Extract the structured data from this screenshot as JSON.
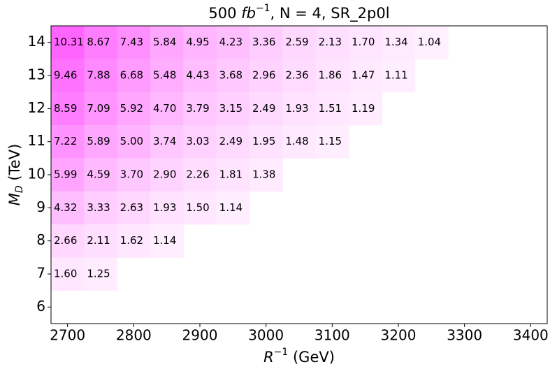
{
  "chart_data": {
    "type": "heatmap",
    "title": {
      "prefix": "500 ",
      "unit": "fb",
      "exp": "−1",
      "suffix": ", N = 4, SR_2p0l"
    },
    "x_label": {
      "base": "R",
      "exp": "−1",
      "suffix": " (GeV)"
    },
    "y_label": {
      "base": "M",
      "sub": "D",
      "suffix": " (TeV)"
    },
    "x": [
      2700,
      2750,
      2800,
      2850,
      2900,
      2950,
      3000,
      3050,
      3100,
      3150,
      3200,
      3250
    ],
    "y": [
      14,
      13,
      12,
      11,
      10,
      9,
      8,
      7
    ],
    "values": [
      [
        10.31,
        8.67,
        7.43,
        5.84,
        4.95,
        4.23,
        3.36,
        2.59,
        2.13,
        1.7,
        1.34,
        1.04
      ],
      [
        9.46,
        7.88,
        6.68,
        5.48,
        4.43,
        3.68,
        2.96,
        2.36,
        1.86,
        1.47,
        1.11,
        null
      ],
      [
        8.59,
        7.09,
        5.92,
        4.7,
        3.79,
        3.15,
        2.49,
        1.93,
        1.51,
        1.19,
        null,
        null
      ],
      [
        7.22,
        5.89,
        5.0,
        3.74,
        3.03,
        2.49,
        1.95,
        1.48,
        1.15,
        null,
        null,
        null
      ],
      [
        5.99,
        4.59,
        3.7,
        2.9,
        2.26,
        1.81,
        1.38,
        null,
        null,
        null,
        null,
        null
      ],
      [
        4.32,
        3.33,
        2.63,
        1.93,
        1.5,
        1.14,
        null,
        null,
        null,
        null,
        null,
        null
      ],
      [
        2.66,
        2.11,
        1.62,
        1.14,
        null,
        null,
        null,
        null,
        null,
        null,
        null,
        null
      ],
      [
        1.6,
        1.25,
        null,
        null,
        null,
        null,
        null,
        null,
        null,
        null,
        null,
        null
      ]
    ],
    "value_labels": [
      [
        "10.31",
        "8.67",
        "7.43",
        "5.84",
        "4.95",
        "4.23",
        "3.36",
        "2.59",
        "2.13",
        "1.70",
        "1.34",
        "1.04"
      ],
      [
        "9.46",
        "7.88",
        "6.68",
        "5.48",
        "4.43",
        "3.68",
        "2.96",
        "2.36",
        "1.86",
        "1.47",
        "1.11",
        null
      ],
      [
        "8.59",
        "7.09",
        "5.92",
        "4.70",
        "3.79",
        "3.15",
        "2.49",
        "1.93",
        "1.51",
        "1.19",
        null,
        null
      ],
      [
        "7.22",
        "5.89",
        "5.00",
        "3.74",
        "3.03",
        "2.49",
        "1.95",
        "1.48",
        "1.15",
        null,
        null,
        null
      ],
      [
        "5.99",
        "4.59",
        "3.70",
        "2.90",
        "2.26",
        "1.81",
        "1.38",
        null,
        null,
        null,
        null,
        null
      ],
      [
        "4.32",
        "3.33",
        "2.63",
        "1.93",
        "1.50",
        "1.14",
        null,
        null,
        null,
        null,
        null,
        null
      ],
      [
        "2.66",
        "2.11",
        "1.62",
        "1.14",
        null,
        null,
        null,
        null,
        null,
        null,
        null,
        null
      ],
      [
        "1.60",
        "1.25",
        null,
        null,
        null,
        null,
        null,
        null,
        null,
        null,
        null,
        null
      ]
    ],
    "color": "#ff64ff",
    "xlim": [
      2675,
      3425
    ],
    "xticks": [
      2700,
      2800,
      2900,
      3000,
      3100,
      3200,
      3300,
      3400
    ],
    "ylim": [
      5.5,
      14.5
    ],
    "yticks": [
      6,
      7,
      8,
      9,
      10,
      11,
      12,
      13,
      14
    ]
  }
}
